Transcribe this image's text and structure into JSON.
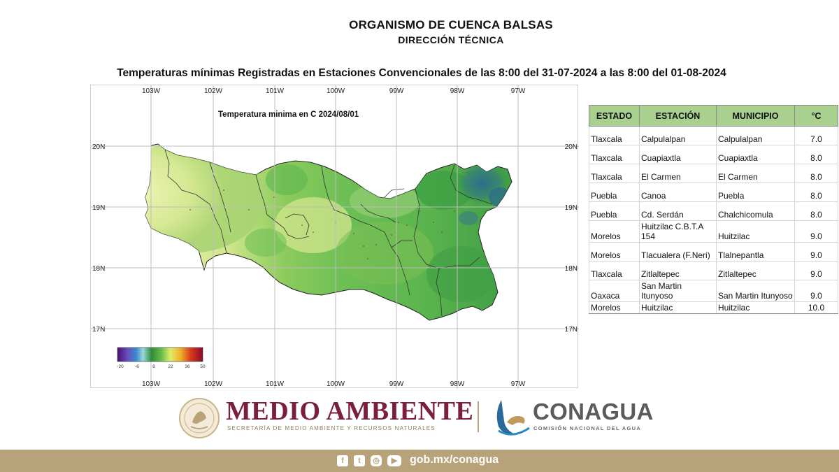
{
  "header": {
    "organism": "ORGANISMO DE CUENCA BALSAS",
    "direction": "DIRECCIÓN  TÉCNICA",
    "report_title": "Temperaturas mínimas  Registradas en Estaciones Convencionales de las  8:00 del   31-07-2024 a las 8:00 del 01-08-2024"
  },
  "map": {
    "caption": "Temperatura minima en C  2024/08/01",
    "lon_labels": [
      "103W",
      "102W",
      "101W",
      "100W",
      "99W",
      "98W",
      "97W"
    ],
    "lat_labels": [
      "20N",
      "19N",
      "18N",
      "17N"
    ],
    "colorbar": {
      "ticks": [
        "-20",
        "-6",
        "8",
        "22",
        "36",
        "50"
      ],
      "colors": [
        "#5a1a8c",
        "#6a5acd",
        "#3a9ad9",
        "#8fd3d6",
        "#2e8b3a",
        "#7cc04a",
        "#d8e86a",
        "#f0c030",
        "#e05020",
        "#a01030"
      ]
    },
    "palette": {
      "light": "#e6efa4",
      "mid": "#7cc054",
      "dark": "#3a9e43",
      "cold": "#2f6f90"
    }
  },
  "table": {
    "headers": [
      "ESTADO",
      "ESTACIÓN",
      "MUNICIPIO",
      "°C"
    ],
    "rows": [
      {
        "estado": "Tlaxcala",
        "estacion": "Calpulalpan",
        "municipio": "Calpulalpan",
        "temp": "7.0"
      },
      {
        "estado": "Tlaxcala",
        "estacion": "Cuapiaxtla",
        "municipio": "Cuapiaxtla",
        "temp": "8.0"
      },
      {
        "estado": "Tlaxcala",
        "estacion": "El Carmen",
        "municipio": "El Carmen",
        "temp": "8.0"
      },
      {
        "estado": "Puebla",
        "estacion": "Canoa",
        "municipio": "Puebla",
        "temp": "8.0"
      },
      {
        "estado": "Puebla",
        "estacion": "Cd. Serdán",
        "municipio": "Chalchicomula",
        "temp": "8.0"
      },
      {
        "estado": "Morelos",
        "estacion": "Huitzilac C.B.T.A 154",
        "municipio": "Huitzilac",
        "temp": "9.0"
      },
      {
        "estado": "Morelos",
        "estacion": "Tlacualera (F.Neri)",
        "municipio": "Tlalnepantla",
        "temp": "9.0"
      },
      {
        "estado": "Tlaxcala",
        "estacion": "Zitlaltepec",
        "municipio": "Zitlaltepec",
        "temp": "9.0"
      },
      {
        "estado": "Oaxaca",
        "estacion": "San Martin Itunyoso",
        "municipio": "San Martin Itunyoso",
        "temp": "9.0"
      },
      {
        "estado": "Morelos",
        "estacion": "Huitzilac",
        "municipio": "Huitzilac",
        "temp": "10.0"
      }
    ]
  },
  "logos": {
    "medio_ambiente": "MEDIO AMBIENTE",
    "medio_ambiente_sub": "SECRETARÍA DE MEDIO AMBIENTE Y RECURSOS NATURALES",
    "conagua": "CONAGUA",
    "conagua_sub": "COMISIÓN NACIONAL DEL AGUA",
    "seal_icon": "mexico-coat-of-arms-icon",
    "conagua_icon": "conagua-wave-icon",
    "ma_color": "#7a1f3d",
    "gold_color": "#b8a37a"
  },
  "footer": {
    "url": "gob.mx/conagua",
    "icons": [
      "facebook-icon",
      "twitter-icon",
      "instagram-icon",
      "youtube-icon"
    ]
  }
}
